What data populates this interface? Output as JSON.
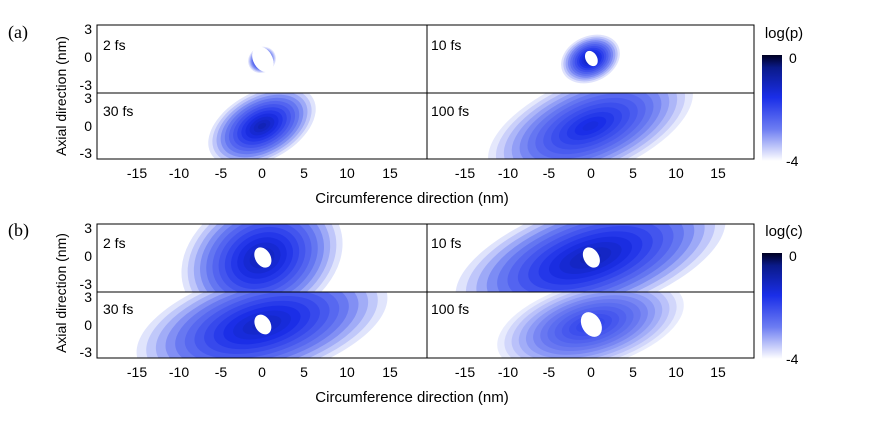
{
  "figure": {
    "blocks": [
      {
        "label": "(a)",
        "colorbar": {
          "title": "log(p)",
          "max_label": "0",
          "min_label": "-4"
        },
        "x_axis_label": "Circumference direction (nm)",
        "y_axis_label": "Axial direction (nm)",
        "x_ticks": [
          "-15",
          "-10",
          "-5",
          "0",
          "5",
          "10",
          "15"
        ],
        "y_ticks": [
          "3",
          "0",
          "-3"
        ],
        "panels": [
          {
            "time": "2 fs"
          },
          {
            "time": "10 fs"
          },
          {
            "time": "30 fs"
          },
          {
            "time": "100 fs"
          }
        ]
      },
      {
        "label": "(b)",
        "colorbar": {
          "title": "log(c)",
          "max_label": "0",
          "min_label": "-4"
        },
        "x_axis_label": "Circumference direction (nm)",
        "y_axis_label": "Axial direction (nm)",
        "x_ticks": [
          "-15",
          "-10",
          "-5",
          "0",
          "5",
          "10",
          "15"
        ],
        "y_ticks": [
          "3",
          "0",
          "-3"
        ],
        "panels": [
          {
            "time": "2 fs"
          },
          {
            "time": "10 fs"
          },
          {
            "time": "30 fs"
          },
          {
            "time": "100 fs"
          }
        ]
      }
    ]
  },
  "chart_data": [
    {
      "type": "heatmap",
      "block": "(a)",
      "quantity": "log(p)",
      "xlim": [
        -19,
        19
      ],
      "ylim": [
        -4,
        4
      ],
      "color_range": [
        -4,
        0
      ],
      "colors": {
        "high": "#000033",
        "mid": "#1a2ee8",
        "low": "#ffffff"
      },
      "panels": [
        {
          "time": "2 fs",
          "center": [
            0,
            -0.1
          ],
          "spread_x": 1.1,
          "spread_y": 1.0,
          "tilt_deg": 30,
          "peak": -0.5,
          "hole": 0.5
        },
        {
          "time": "10 fs",
          "center": [
            0,
            0
          ],
          "spread_x": 2.4,
          "spread_y": 1.8,
          "tilt_deg": 25,
          "peak": -0.8,
          "hole": 0.3
        },
        {
          "time": "30 fs",
          "center": [
            0,
            0
          ],
          "spread_x": 4.5,
          "spread_y": 2.8,
          "tilt_deg": 28,
          "peak": -0.9,
          "hole": 0
        },
        {
          "time": "100 fs",
          "center": [
            0,
            0
          ],
          "spread_x": 8.5,
          "spread_y": 4.0,
          "tilt_deg": 22,
          "peak": -1.4,
          "hole": 0
        }
      ]
    },
    {
      "type": "heatmap",
      "block": "(b)",
      "quantity": "log(c)",
      "xlim": [
        -19,
        19
      ],
      "ylim": [
        -4,
        4
      ],
      "color_range": [
        -4,
        0
      ],
      "colors": {
        "high": "#000033",
        "mid": "#1a2ee8",
        "low": "#ffffff"
      },
      "panels": [
        {
          "time": "2 fs",
          "center": [
            0,
            0
          ],
          "spread_x": 6.5,
          "spread_y": 5.0,
          "tilt_deg": 25,
          "peak": -0.9,
          "hole": 0.4
        },
        {
          "time": "10 fs",
          "center": [
            0,
            0
          ],
          "spread_x": 11.0,
          "spread_y": 4.5,
          "tilt_deg": 18,
          "peak": -0.9,
          "hole": 0.4
        },
        {
          "time": "30 fs",
          "center": [
            0,
            0
          ],
          "spread_x": 10.0,
          "spread_y": 4.5,
          "tilt_deg": 15,
          "peak": -1.0,
          "hole": 0.4
        },
        {
          "time": "100 fs",
          "center": [
            0,
            0
          ],
          "spread_x": 7.5,
          "spread_y": 3.5,
          "tilt_deg": 15,
          "peak": -1.8,
          "hole": 0.5
        }
      ]
    }
  ]
}
